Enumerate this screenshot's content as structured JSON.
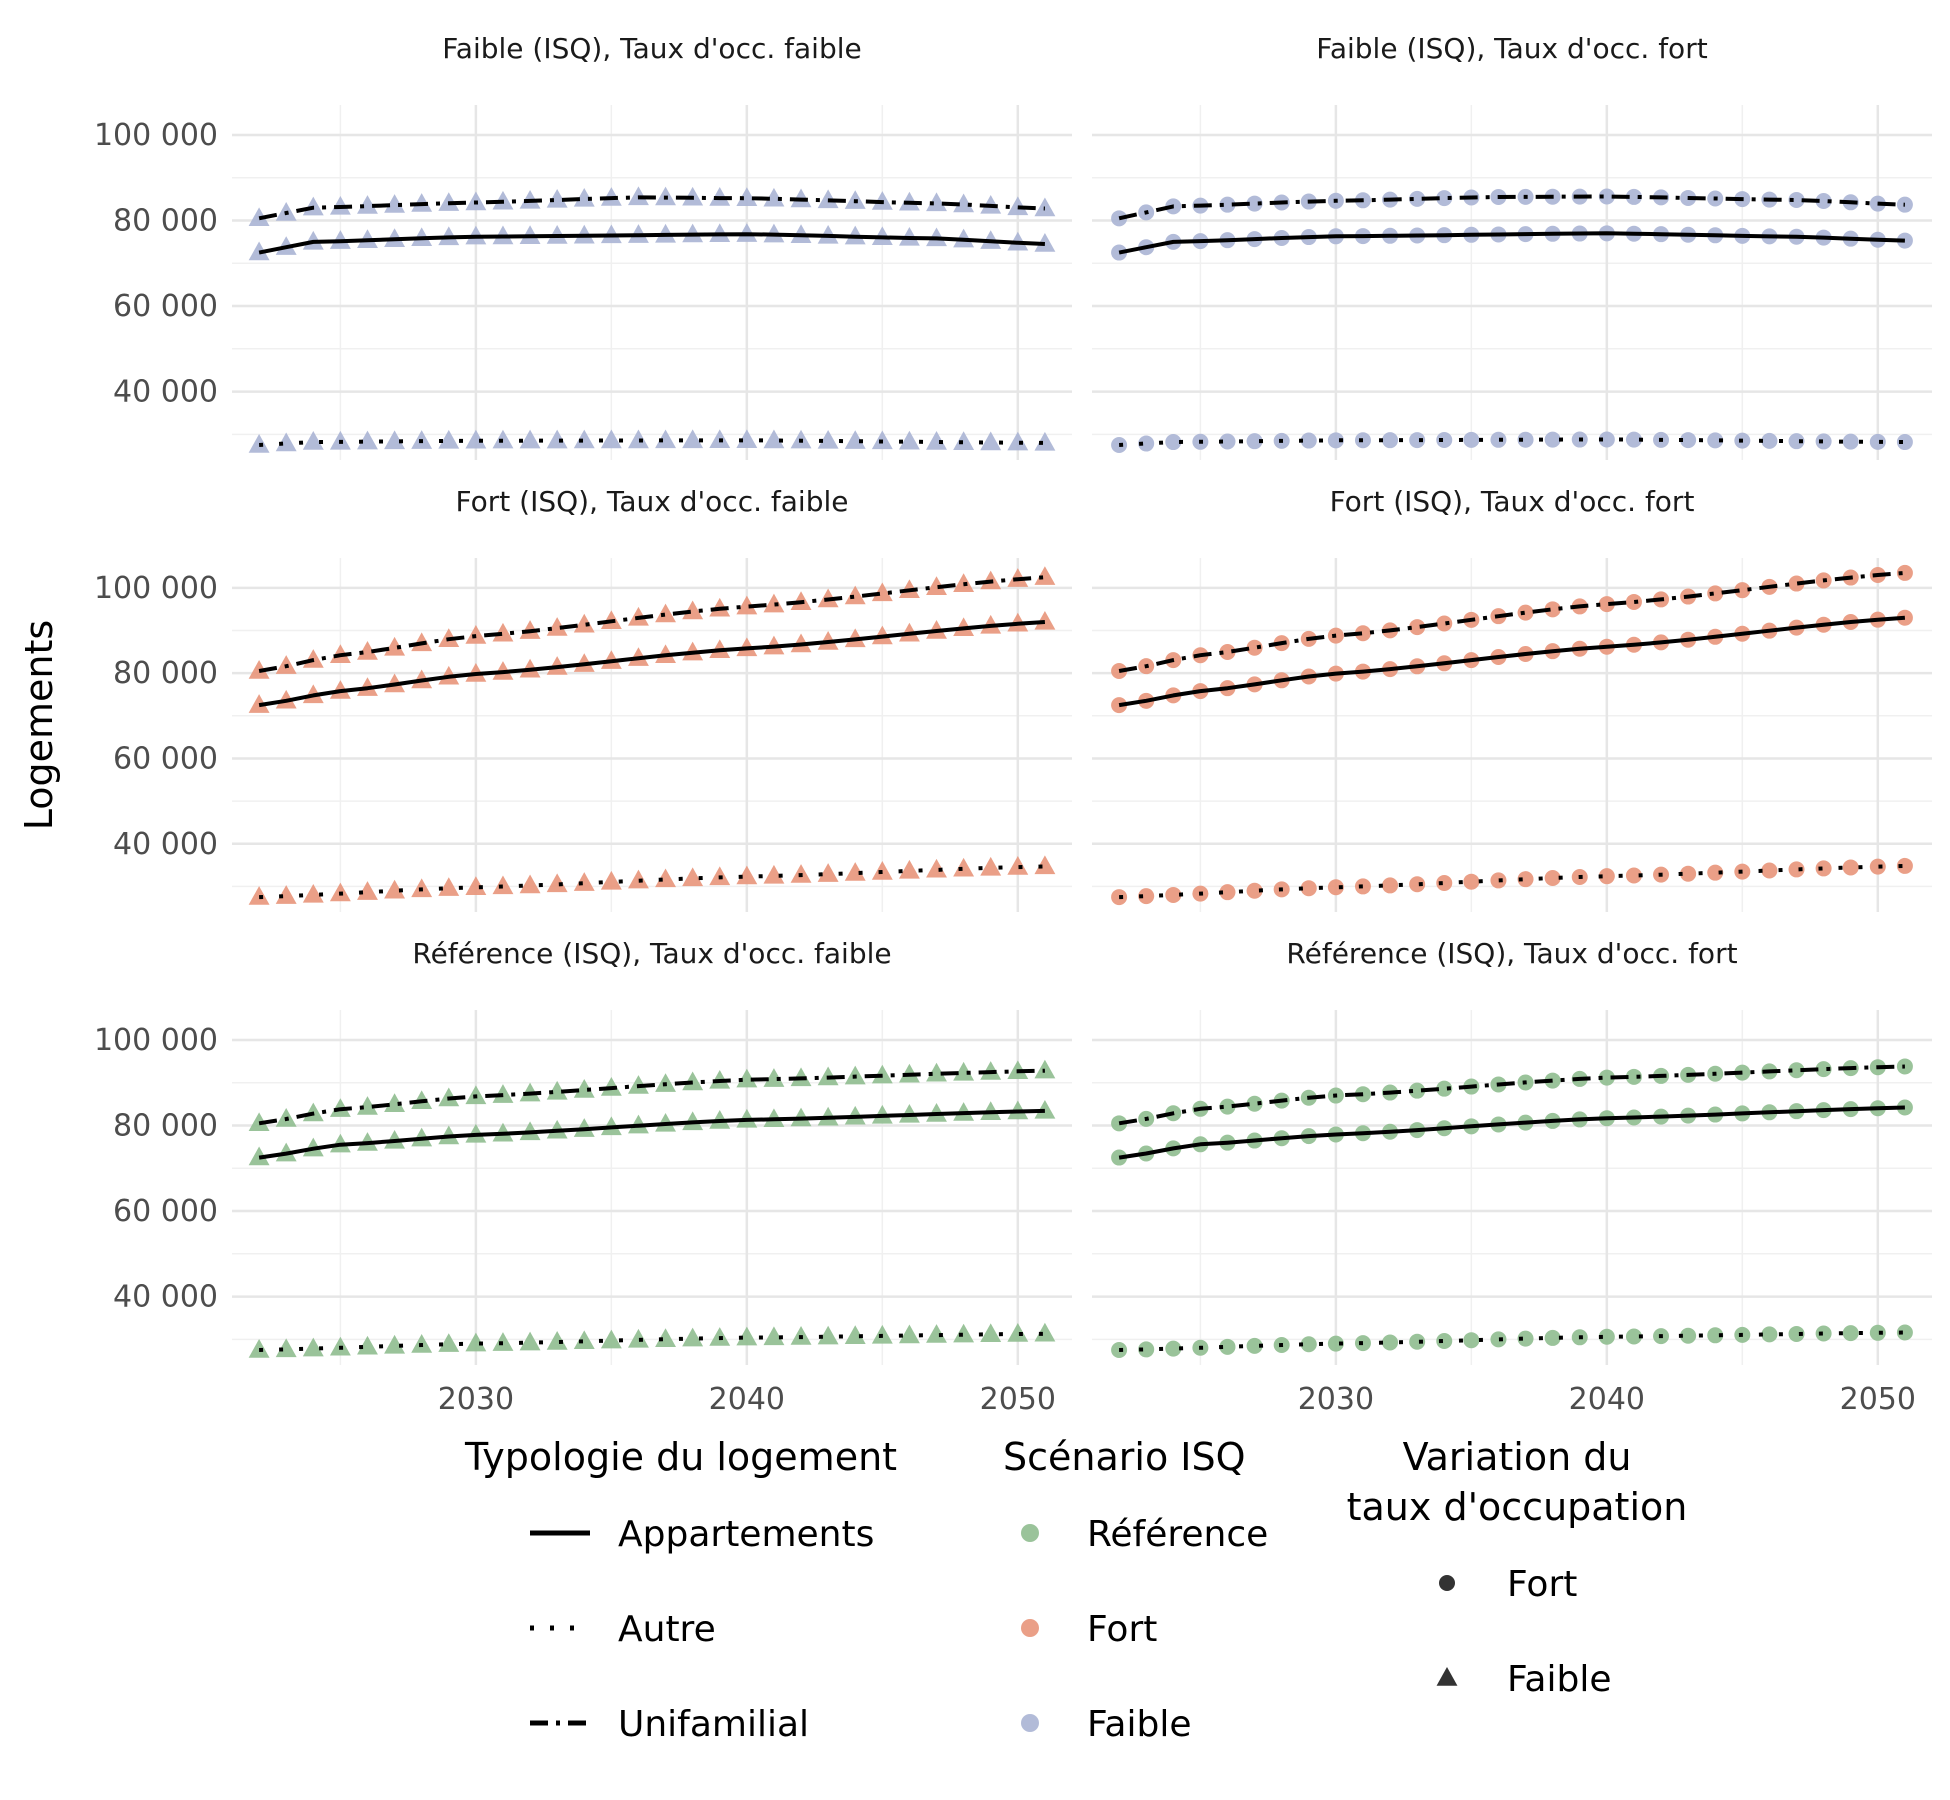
{
  "chart_data": {
    "type": "line",
    "ylabel": "Logements",
    "x_ticks": [
      2030,
      2040,
      2050
    ],
    "y_ticks": [
      40000,
      60000,
      80000,
      100000
    ],
    "y_tick_labels": [
      "40 000",
      "60 000",
      "80 000",
      "100 000"
    ],
    "xlim": [
      2021,
      2052
    ],
    "ylim": [
      24000,
      107000
    ],
    "years": [
      2022,
      2023,
      2024,
      2025,
      2026,
      2027,
      2028,
      2029,
      2030,
      2031,
      2032,
      2033,
      2034,
      2035,
      2036,
      2037,
      2038,
      2039,
      2040,
      2041,
      2042,
      2043,
      2044,
      2045,
      2046,
      2047,
      2048,
      2049,
      2050,
      2051
    ],
    "grid": true,
    "legend_position": "bottom",
    "colors": {
      "Référence": "#8fbc8f",
      "Fort": "#e8957a",
      "Faible": "#aab4d4",
      "line": "#000000"
    },
    "panels": [
      {
        "title": "Faible (ISQ), Taux d'occ. faible",
        "scenario": "Faible",
        "occupation": "Faible",
        "series": [
          {
            "typology": "Appartements",
            "anchors": [
              [
                2022,
                72500
              ],
              [
                2024,
                75000
              ],
              [
                2030,
                76200
              ],
              [
                2040,
                76800
              ],
              [
                2047,
                75800
              ],
              [
                2051,
                74500
              ]
            ]
          },
          {
            "typology": "Autre",
            "anchors": [
              [
                2022,
                27500
              ],
              [
                2024,
                28200
              ],
              [
                2030,
                28500
              ],
              [
                2040,
                28600
              ],
              [
                2051,
                28000
              ]
            ]
          },
          {
            "typology": "Unifamilial",
            "anchors": [
              [
                2022,
                80500
              ],
              [
                2024,
                83000
              ],
              [
                2030,
                84200
              ],
              [
                2036,
                85400
              ],
              [
                2040,
                85200
              ],
              [
                2047,
                84000
              ],
              [
                2051,
                82800
              ]
            ]
          }
        ]
      },
      {
        "title": "Faible (ISQ), Taux d'occ. fort",
        "scenario": "Faible",
        "occupation": "Fort",
        "series": [
          {
            "typology": "Appartements",
            "anchors": [
              [
                2022,
                72500
              ],
              [
                2024,
                75000
              ],
              [
                2030,
                76300
              ],
              [
                2040,
                77000
              ],
              [
                2047,
                76200
              ],
              [
                2051,
                75300
              ]
            ]
          },
          {
            "typology": "Autre",
            "anchors": [
              [
                2022,
                27500
              ],
              [
                2024,
                28200
              ],
              [
                2030,
                28600
              ],
              [
                2040,
                28800
              ],
              [
                2051,
                28200
              ]
            ]
          },
          {
            "typology": "Unifamilial",
            "anchors": [
              [
                2022,
                80500
              ],
              [
                2024,
                83300
              ],
              [
                2030,
                84600
              ],
              [
                2036,
                85500
              ],
              [
                2040,
                85600
              ],
              [
                2047,
                84800
              ],
              [
                2051,
                83700
              ]
            ]
          }
        ]
      },
      {
        "title": "Fort (ISQ), Taux d'occ. faible",
        "scenario": "Fort",
        "occupation": "Faible",
        "series": [
          {
            "typology": "Appartements",
            "anchors": [
              [
                2022,
                72500
              ],
              [
                2025,
                75800
              ],
              [
                2030,
                79800
              ],
              [
                2040,
                85800
              ],
              [
                2051,
                92000
              ]
            ]
          },
          {
            "typology": "Autre",
            "anchors": [
              [
                2022,
                27500
              ],
              [
                2030,
                29800
              ],
              [
                2040,
                32300
              ],
              [
                2051,
                34700
              ]
            ]
          },
          {
            "typology": "Unifamilial",
            "anchors": [
              [
                2022,
                80500
              ],
              [
                2025,
                84200
              ],
              [
                2030,
                88700
              ],
              [
                2040,
                95600
              ],
              [
                2051,
                102500
              ]
            ]
          }
        ]
      },
      {
        "title": "Fort (ISQ), Taux d'occ. fort",
        "scenario": "Fort",
        "occupation": "Fort",
        "series": [
          {
            "typology": "Appartements",
            "anchors": [
              [
                2022,
                72500
              ],
              [
                2025,
                75800
              ],
              [
                2030,
                79900
              ],
              [
                2040,
                86200
              ],
              [
                2051,
                93000
              ]
            ]
          },
          {
            "typology": "Autre",
            "anchors": [
              [
                2022,
                27500
              ],
              [
                2030,
                29800
              ],
              [
                2040,
                32400
              ],
              [
                2051,
                34800
              ]
            ]
          },
          {
            "typology": "Unifamilial",
            "anchors": [
              [
                2022,
                80500
              ],
              [
                2025,
                84200
              ],
              [
                2030,
                88800
              ],
              [
                2040,
                96200
              ],
              [
                2051,
                103500
              ]
            ]
          }
        ]
      },
      {
        "title": "Référence (ISQ), Taux d'occ. faible",
        "scenario": "Référence",
        "occupation": "Faible",
        "series": [
          {
            "typology": "Appartements",
            "anchors": [
              [
                2022,
                72500
              ],
              [
                2025,
                75500
              ],
              [
                2030,
                77800
              ],
              [
                2040,
                81300
              ],
              [
                2051,
                83400
              ]
            ]
          },
          {
            "typology": "Autre",
            "anchors": [
              [
                2022,
                27500
              ],
              [
                2030,
                29000
              ],
              [
                2040,
                30400
              ],
              [
                2051,
                31300
              ]
            ]
          },
          {
            "typology": "Unifamilial",
            "anchors": [
              [
                2022,
                80500
              ],
              [
                2025,
                83800
              ],
              [
                2030,
                86800
              ],
              [
                2040,
                90700
              ],
              [
                2051,
                92800
              ]
            ]
          }
        ]
      },
      {
        "title": "Référence (ISQ), Taux d'occ. fort",
        "scenario": "Référence",
        "occupation": "Fort",
        "series": [
          {
            "typology": "Appartements",
            "anchors": [
              [
                2022,
                72500
              ],
              [
                2025,
                75600
              ],
              [
                2030,
                77900
              ],
              [
                2040,
                81700
              ],
              [
                2051,
                84200
              ]
            ]
          },
          {
            "typology": "Autre",
            "anchors": [
              [
                2022,
                27500
              ],
              [
                2030,
                29000
              ],
              [
                2040,
                30600
              ],
              [
                2051,
                31600
              ]
            ]
          },
          {
            "typology": "Unifamilial",
            "anchors": [
              [
                2022,
                80500
              ],
              [
                2025,
                83900
              ],
              [
                2030,
                87000
              ],
              [
                2040,
                91200
              ],
              [
                2051,
                93800
              ]
            ]
          }
        ]
      }
    ],
    "legend": {
      "typology": {
        "title": "Typologie du logement",
        "items": [
          "Appartements",
          "Autre",
          "Unifamilial"
        ]
      },
      "scenario": {
        "title": "Scénario ISQ",
        "items": [
          "Référence",
          "Fort",
          "Faible"
        ]
      },
      "occupation": {
        "title_lines": [
          "Variation du",
          "taux d'occupation"
        ],
        "items": [
          "Fort",
          "Faible"
        ]
      }
    }
  }
}
